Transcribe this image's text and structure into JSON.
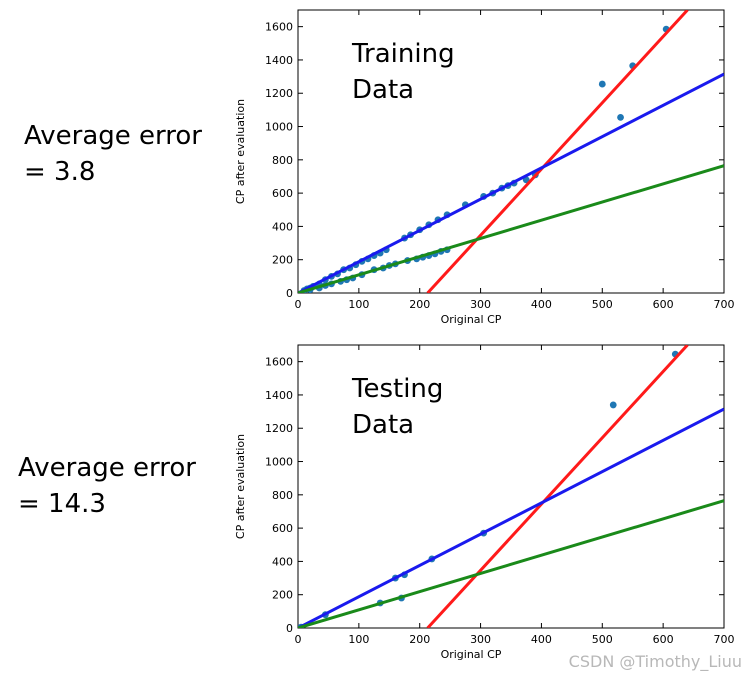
{
  "panels": [
    {
      "error_line1": "Average error",
      "error_line2": "= 3.8"
    },
    {
      "error_line1": "Average error",
      "error_line2": "= 14.3"
    }
  ],
  "watermark": "CSDN @Timothy_Liuu",
  "colors": {
    "points": "#1f77b4",
    "red": "#ff1a1a",
    "blue": "#1a1aee",
    "green": "#1a8a1a"
  },
  "chart_data": [
    {
      "type": "scatter",
      "annotation_lines": [
        "Training",
        "Data"
      ],
      "xlabel": "Original CP",
      "ylabel": "CP after evaluation",
      "xlim": [
        0,
        700
      ],
      "ylim": [
        0,
        1700
      ],
      "xticks": [
        0,
        100,
        200,
        300,
        400,
        500,
        600,
        700
      ],
      "yticks": [
        0,
        200,
        400,
        600,
        800,
        1000,
        1200,
        1400,
        1600
      ],
      "points": [
        [
          10,
          15
        ],
        [
          15,
          25
        ],
        [
          20,
          30
        ],
        [
          25,
          40
        ],
        [
          35,
          55
        ],
        [
          45,
          80
        ],
        [
          55,
          100
        ],
        [
          65,
          115
        ],
        [
          75,
          140
        ],
        [
          85,
          150
        ],
        [
          95,
          170
        ],
        [
          105,
          190
        ],
        [
          115,
          205
        ],
        [
          125,
          225
        ],
        [
          135,
          240
        ],
        [
          145,
          260
        ],
        [
          175,
          330
        ],
        [
          185,
          350
        ],
        [
          200,
          380
        ],
        [
          215,
          410
        ],
        [
          230,
          440
        ],
        [
          245,
          470
        ],
        [
          275,
          530
        ],
        [
          305,
          580
        ],
        [
          320,
          600
        ],
        [
          335,
          630
        ],
        [
          345,
          645
        ],
        [
          355,
          660
        ],
        [
          375,
          680
        ],
        [
          390,
          710
        ],
        [
          500,
          1255
        ],
        [
          530,
          1055
        ],
        [
          550,
          1365
        ],
        [
          605,
          1585
        ],
        [
          20,
          20
        ],
        [
          35,
          30
        ],
        [
          45,
          45
        ],
        [
          55,
          55
        ],
        [
          70,
          70
        ],
        [
          80,
          80
        ],
        [
          90,
          90
        ],
        [
          105,
          110
        ],
        [
          125,
          140
        ],
        [
          140,
          150
        ],
        [
          150,
          165
        ],
        [
          160,
          175
        ],
        [
          180,
          195
        ],
        [
          195,
          205
        ],
        [
          205,
          215
        ],
        [
          215,
          225
        ],
        [
          225,
          235
        ],
        [
          235,
          250
        ],
        [
          245,
          260
        ]
      ],
      "series": [
        {
          "color": "red",
          "x": [
            213,
            640
          ],
          "y": [
            0,
            1700
          ]
        },
        {
          "color": "blue",
          "x": [
            0,
            700
          ],
          "y": [
            0,
            1315
          ]
        },
        {
          "color": "green",
          "x": [
            0,
            700
          ],
          "y": [
            0,
            765
          ]
        }
      ]
    },
    {
      "type": "scatter",
      "annotation_lines": [
        "Testing",
        "Data"
      ],
      "xlabel": "Original CP",
      "ylabel": "CP after evaluation",
      "xlim": [
        0,
        700
      ],
      "ylim": [
        0,
        1700
      ],
      "xticks": [
        0,
        100,
        200,
        300,
        400,
        500,
        600,
        700
      ],
      "yticks": [
        0,
        200,
        400,
        600,
        800,
        1000,
        1200,
        1400,
        1600
      ],
      "points": [
        [
          5,
          5
        ],
        [
          45,
          80
        ],
        [
          135,
          150
        ],
        [
          160,
          300
        ],
        [
          170,
          180
        ],
        [
          175,
          320
        ],
        [
          220,
          415
        ],
        [
          305,
          570
        ],
        [
          518,
          1340
        ],
        [
          620,
          1645
        ]
      ],
      "series": [
        {
          "color": "red",
          "x": [
            213,
            640
          ],
          "y": [
            0,
            1700
          ]
        },
        {
          "color": "blue",
          "x": [
            0,
            700
          ],
          "y": [
            0,
            1315
          ]
        },
        {
          "color": "green",
          "x": [
            0,
            700
          ],
          "y": [
            0,
            765
          ]
        }
      ]
    }
  ]
}
